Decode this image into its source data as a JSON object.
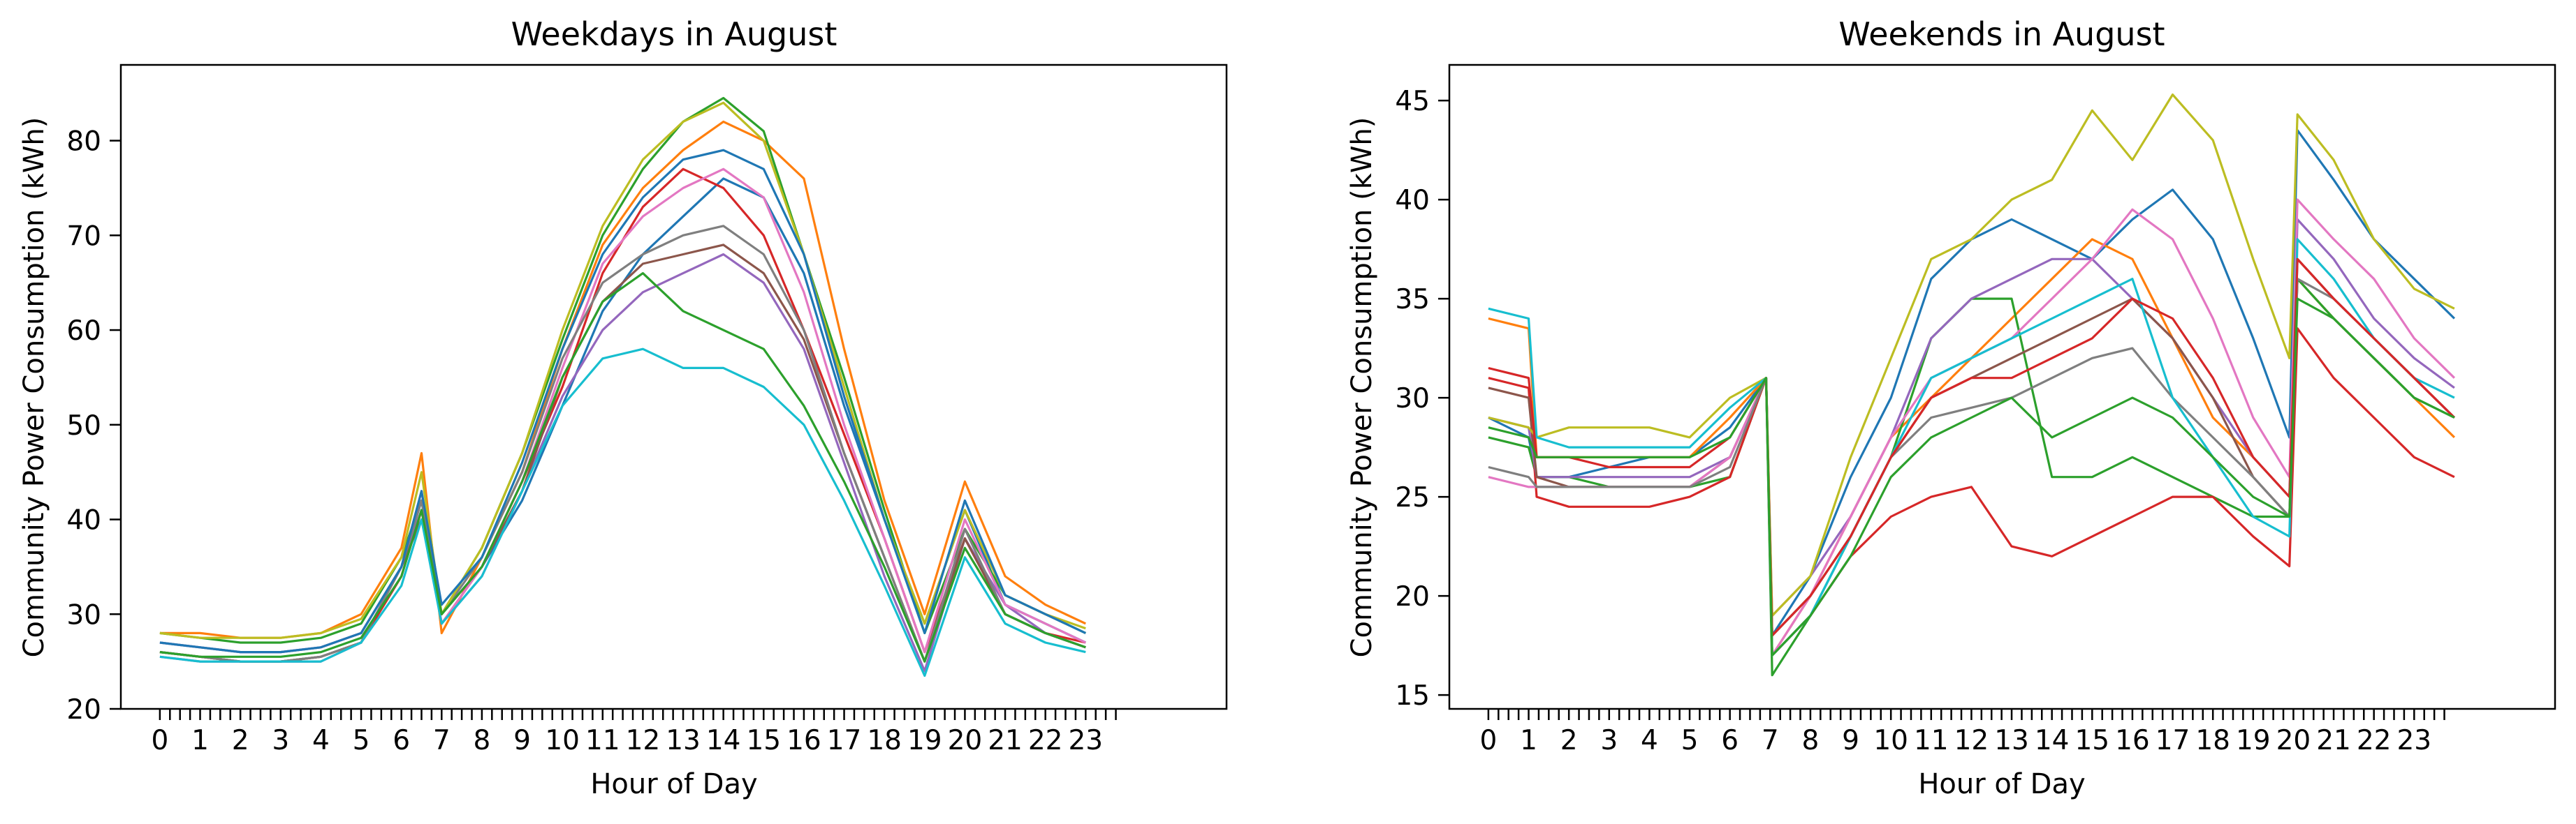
{
  "chart_data": [
    {
      "type": "line",
      "title": "Weekdays in August",
      "xlabel": "Hour of Day",
      "ylabel": "Community Power Consumption (kWh)",
      "xlim": [
        -0.97,
        26.5
      ],
      "ylim": [
        20,
        88
      ],
      "x_ticks": [
        "0",
        "1",
        "2",
        "3",
        "4",
        "5",
        "6",
        "7",
        "8",
        "9",
        "10",
        "11",
        "12",
        "13",
        "14",
        "15",
        "16",
        "17",
        "18",
        "19",
        "20",
        "21",
        "22",
        "23"
      ],
      "y_ticks": [
        20,
        30,
        40,
        50,
        60,
        70,
        80
      ],
      "legend": "none",
      "grid": false,
      "x": [
        0,
        1,
        2,
        3,
        4,
        5,
        6,
        6.5,
        7,
        8,
        9,
        10,
        11,
        12,
        13,
        14,
        15,
        16,
        17,
        18,
        19,
        20,
        21,
        22,
        23
      ],
      "series": [
        {
          "color": "#1f77b4",
          "values": [
            27,
            26.5,
            26,
            26,
            26.5,
            28,
            35,
            42,
            30,
            35,
            42,
            52,
            62,
            68,
            72,
            76,
            74,
            66,
            52,
            40,
            29,
            41,
            31,
            29,
            27
          ]
        },
        {
          "color": "#ff7f0e",
          "values": [
            28,
            28,
            27.5,
            27.5,
            28,
            30,
            37,
            47,
            28,
            36,
            45,
            58,
            69,
            75,
            79,
            82,
            80,
            76,
            58,
            42,
            30,
            44,
            34,
            31,
            29
          ]
        },
        {
          "color": "#2ca02c",
          "values": [
            28,
            27.5,
            27,
            27,
            27.5,
            29,
            36,
            42,
            30,
            37,
            47,
            59,
            70,
            77,
            82,
            84.5,
            81,
            68,
            55,
            41,
            28,
            39,
            32,
            30,
            28
          ]
        },
        {
          "color": "#d62728",
          "values": [
            26,
            25.5,
            25,
            25,
            25.5,
            27,
            34,
            41,
            29,
            35,
            44,
            54,
            66,
            73,
            77,
            75,
            70,
            60,
            49,
            38,
            26,
            38,
            30,
            28,
            27
          ]
        },
        {
          "color": "#9467bd",
          "values": [
            25.5,
            25,
            25,
            25,
            25,
            27,
            35,
            41,
            29,
            34,
            43,
            53,
            60,
            64,
            66,
            68,
            65,
            58,
            46,
            34,
            24,
            38,
            31,
            28,
            26.5
          ]
        },
        {
          "color": "#8c564b",
          "values": [
            26,
            25.5,
            25,
            25,
            25.5,
            27,
            35,
            40,
            30,
            35,
            43,
            55,
            63,
            67,
            68,
            69,
            66,
            59,
            47,
            36,
            25,
            38,
            30,
            28,
            26.5
          ]
        },
        {
          "color": "#e377c2",
          "values": [
            27,
            26.5,
            26,
            26,
            26.5,
            28,
            35,
            43,
            29,
            35,
            44,
            56,
            67,
            72,
            75,
            77,
            74,
            64,
            50,
            38,
            26,
            40,
            31,
            29,
            27
          ]
        },
        {
          "color": "#7f7f7f",
          "values": [
            26,
            25.5,
            25,
            25,
            25.5,
            27,
            35,
            42,
            30,
            36,
            45,
            57,
            65,
            68,
            70,
            71,
            68,
            60,
            47,
            36,
            25,
            39,
            30,
            28,
            26.5
          ]
        },
        {
          "color": "#bcbd22",
          "values": [
            28,
            27.5,
            27.5,
            27.5,
            28,
            29.5,
            36,
            45,
            30,
            37,
            47,
            60,
            71,
            78,
            82,
            84,
            80,
            68,
            54,
            40,
            29,
            41,
            32,
            30,
            28.5
          ]
        },
        {
          "color": "#17becf",
          "values": [
            25.5,
            25,
            25,
            25,
            25,
            27,
            33,
            40,
            29,
            34,
            43,
            52,
            57,
            58,
            56,
            56,
            54,
            50,
            42,
            33,
            23.5,
            36,
            29,
            27,
            26
          ]
        },
        {
          "color": "#1f77b4",
          "values": [
            27,
            26.5,
            26,
            26,
            26.5,
            28,
            35,
            43,
            31,
            36,
            46,
            58,
            68,
            74,
            78,
            79,
            77,
            68,
            53,
            40,
            28,
            42,
            32,
            30,
            28
          ]
        },
        {
          "color": "#2ca02c",
          "values": [
            26,
            25.5,
            25.5,
            25.5,
            26,
            27.5,
            34,
            41,
            30,
            35,
            44,
            55,
            63,
            66,
            62,
            60,
            58,
            52,
            44,
            35,
            25,
            37,
            30,
            28,
            26.5
          ]
        }
      ]
    },
    {
      "type": "line",
      "title": "Weekends in August",
      "xlabel": "Hour of Day",
      "ylabel": "Community Power Consumption (kWh)",
      "xlim": [
        -0.97,
        26.5
      ],
      "ylim": [
        14.3,
        46.8
      ],
      "x_ticks": [
        "0",
        "1",
        "2",
        "3",
        "4",
        "5",
        "6",
        "7",
        "8",
        "9",
        "10",
        "11",
        "12",
        "13",
        "14",
        "15",
        "16",
        "17",
        "18",
        "19",
        "20",
        "21",
        "22",
        "23"
      ],
      "y_ticks": [
        15,
        20,
        25,
        30,
        35,
        40,
        45
      ],
      "legend": "none",
      "grid": false,
      "x": [
        0,
        1,
        1.2,
        2,
        3,
        4,
        5,
        6,
        6.9,
        7.05,
        8,
        9,
        10,
        11,
        12,
        13,
        14,
        15,
        16,
        17,
        18,
        19,
        19.9,
        20.1,
        21,
        22,
        23,
        24
      ],
      "series": [
        {
          "color": "#1f77b4",
          "values": [
            29,
            28,
            26,
            26,
            26.5,
            27,
            27,
            28.5,
            31,
            18,
            21,
            26,
            30,
            36,
            38,
            39,
            38,
            37,
            39,
            40.5,
            38,
            33,
            28,
            43.5,
            41,
            38,
            36,
            34
          ]
        },
        {
          "color": "#ff7f0e",
          "values": [
            34,
            33.5,
            27,
            27,
            27,
            27,
            27,
            29,
            31,
            17,
            20,
            24,
            28,
            30,
            32,
            34,
            36,
            38,
            37,
            33,
            29,
            27,
            25,
            36,
            34,
            32,
            30,
            28
          ]
        },
        {
          "color": "#2ca02c",
          "values": [
            28,
            27.5,
            26,
            26,
            25.5,
            25.5,
            25.5,
            26,
            31,
            16,
            19,
            23,
            27,
            33,
            35,
            35,
            26,
            26,
            27,
            26,
            25,
            24,
            24,
            36,
            34,
            32,
            30,
            29
          ]
        },
        {
          "color": "#d62728",
          "values": [
            31,
            30.5,
            25,
            24.5,
            24.5,
            24.5,
            25,
            26,
            31,
            17,
            19,
            22,
            24,
            25,
            25.5,
            22.5,
            22,
            23,
            24,
            25,
            25,
            23,
            21.5,
            33.5,
            31,
            29,
            27,
            26
          ]
        },
        {
          "color": "#9467bd",
          "values": [
            29,
            28.5,
            26,
            26,
            26,
            26,
            26,
            27,
            31,
            19,
            21,
            24,
            28,
            33,
            35,
            36,
            37,
            37,
            35,
            33,
            30,
            27,
            25,
            39,
            37,
            34,
            32,
            30.5
          ]
        },
        {
          "color": "#8c564b",
          "values": [
            30.5,
            30,
            26,
            25.5,
            25.5,
            25.5,
            25.5,
            27,
            31,
            18,
            20,
            23,
            27,
            30,
            31,
            32,
            33,
            34,
            35,
            33,
            30,
            26,
            24,
            37,
            35,
            33,
            31,
            29
          ]
        },
        {
          "color": "#e377c2",
          "values": [
            26,
            25.5,
            25.5,
            25.5,
            25.5,
            25.5,
            25.5,
            27,
            31,
            17,
            20,
            24,
            28,
            31,
            32,
            33,
            35,
            37,
            39.5,
            38,
            34,
            29,
            26,
            40,
            38,
            36,
            33,
            31
          ]
        },
        {
          "color": "#7f7f7f",
          "values": [
            26.5,
            26,
            25.5,
            25.5,
            25.5,
            25.5,
            25.5,
            26.5,
            31,
            18,
            20,
            23,
            27,
            29,
            29.5,
            30,
            31,
            32,
            32.5,
            30,
            28,
            26,
            24,
            36,
            35,
            33,
            31,
            29
          ]
        },
        {
          "color": "#bcbd22",
          "values": [
            29,
            28.5,
            28,
            28.5,
            28.5,
            28.5,
            28,
            30,
            31,
            19,
            21,
            27,
            32,
            37,
            38,
            40,
            41,
            44.5,
            42,
            45.3,
            43,
            37,
            32,
            44.3,
            42,
            38,
            35.5,
            34.5
          ]
        },
        {
          "color": "#17becf",
          "values": [
            34.5,
            34,
            28,
            27.5,
            27.5,
            27.5,
            27.5,
            29.5,
            31,
            17,
            19,
            23,
            27,
            31,
            32,
            33,
            34,
            35,
            36,
            30,
            27,
            24,
            23,
            38,
            36,
            33,
            31,
            30
          ]
        },
        {
          "color": "#d62728",
          "values": [
            31.5,
            31,
            27,
            27,
            26.5,
            26.5,
            26.5,
            28,
            31,
            18,
            20,
            23,
            27,
            30,
            31,
            31,
            32,
            33,
            35,
            34,
            31,
            27,
            25,
            37,
            35,
            33,
            31,
            29
          ]
        },
        {
          "color": "#2ca02c",
          "values": [
            28.5,
            28,
            27,
            27,
            27,
            27,
            27,
            28,
            31,
            17,
            19,
            22,
            26,
            28,
            29,
            30,
            28,
            29,
            30,
            29,
            27,
            25,
            24,
            35,
            34,
            32,
            30,
            29
          ]
        }
      ]
    }
  ]
}
